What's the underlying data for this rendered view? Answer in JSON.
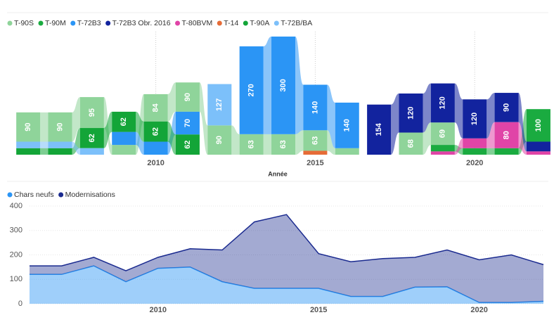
{
  "chart_data": [
    {
      "type": "ribbon",
      "x_label": "Année",
      "x": [
        2006,
        2007,
        2008,
        2009,
        2010,
        2011,
        2012,
        2013,
        2014,
        2015,
        2016,
        2017,
        2018,
        2019,
        2020,
        2021,
        2022
      ],
      "xlim": [
        2005.6,
        2022.2
      ],
      "xticks": [
        2010,
        2015,
        2020
      ],
      "series": [
        {
          "name": "T-90S",
          "color": "#8fd49a",
          "values": [
            90,
            90,
            95,
            30,
            84,
            90,
            90,
            63,
            63,
            63,
            20,
            null,
            68,
            69,
            null,
            null,
            null
          ]
        },
        {
          "name": "T-90M",
          "color": "#1aab40",
          "values": [
            null,
            null,
            null,
            null,
            null,
            null,
            null,
            null,
            null,
            null,
            null,
            null,
            null,
            20,
            20,
            20,
            100
          ]
        },
        {
          "name": "T-72B3",
          "color": "#2b95f5",
          "values": [
            null,
            null,
            null,
            40,
            40,
            70,
            null,
            270,
            300,
            140,
            140,
            null,
            null,
            null,
            null,
            null,
            null
          ]
        },
        {
          "name": "T-72B3 Obr. 2016",
          "color": "#12239e",
          "values": [
            null,
            null,
            null,
            null,
            null,
            null,
            null,
            null,
            null,
            null,
            null,
            154,
            120,
            120,
            120,
            90,
            30
          ]
        },
        {
          "name": "T-80BVM",
          "color": "#e044a7",
          "values": [
            null,
            null,
            null,
            null,
            null,
            null,
            null,
            null,
            null,
            null,
            null,
            null,
            null,
            10,
            30,
            80,
            10
          ]
        },
        {
          "name": "T-14",
          "color": "#e66c37",
          "values": [
            null,
            null,
            null,
            null,
            null,
            null,
            null,
            null,
            null,
            12,
            null,
            null,
            null,
            null,
            null,
            null,
            null
          ]
        },
        {
          "name": "T-90A",
          "color": "#13a538",
          "values": [
            20,
            20,
            62,
            62,
            62,
            62,
            null,
            null,
            null,
            null,
            null,
            null,
            null,
            null,
            null,
            null,
            null
          ]
        },
        {
          "name": "T-72B/BA",
          "color": "#7cc0fa",
          "values": [
            20,
            20,
            20,
            null,
            null,
            null,
            127,
            null,
            null,
            null,
            null,
            null,
            null,
            null,
            null,
            null,
            null
          ]
        }
      ]
    },
    {
      "type": "area",
      "x": [
        2006,
        2007,
        2008,
        2009,
        2010,
        2011,
        2012,
        2013,
        2014,
        2015,
        2016,
        2017,
        2018,
        2019,
        2020,
        2021,
        2022
      ],
      "xlim": [
        2006,
        2022
      ],
      "xticks": [
        2010,
        2015,
        2020
      ],
      "ylim": [
        0,
        400
      ],
      "yticks": [
        0,
        100,
        200,
        300,
        400
      ],
      "stacked": true,
      "series": [
        {
          "name": "Chars neufs",
          "color": "#2b95f5",
          "values": [
            120,
            120,
            155,
            90,
            145,
            150,
            90,
            63,
            63,
            63,
            30,
            30,
            68,
            69,
            5,
            5,
            10
          ]
        },
        {
          "name": "Modernisations",
          "color": "#1a2a8f",
          "values": [
            35,
            35,
            35,
            45,
            45,
            75,
            130,
            272,
            302,
            142,
            142,
            155,
            122,
            151,
            175,
            195,
            150
          ]
        }
      ]
    }
  ]
}
